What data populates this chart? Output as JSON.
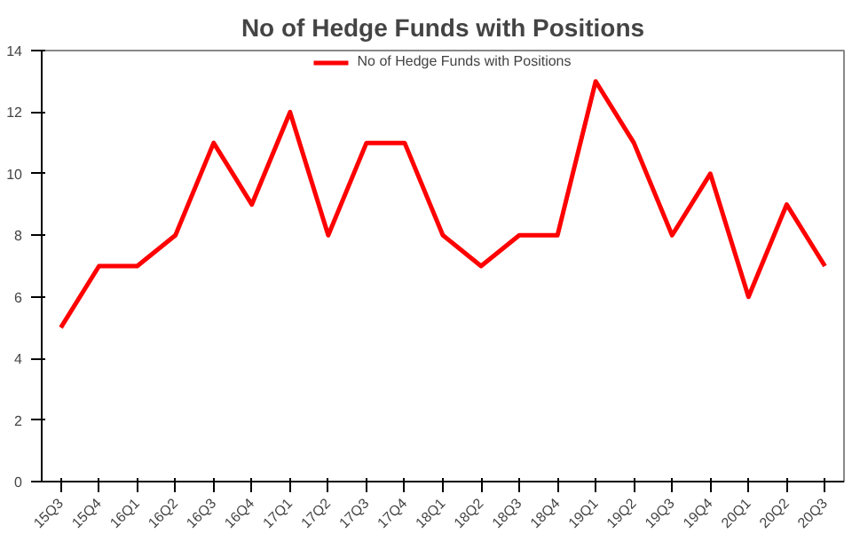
{
  "chart_data": {
    "type": "line",
    "title": "No of Hedge Funds with Positions",
    "categories": [
      "15Q3",
      "15Q4",
      "16Q1",
      "16Q2",
      "16Q3",
      "16Q4",
      "17Q1",
      "17Q2",
      "17Q3",
      "17Q4",
      "18Q1",
      "18Q2",
      "18Q3",
      "18Q4",
      "19Q1",
      "19Q2",
      "19Q3",
      "19Q4",
      "20Q1",
      "20Q2",
      "20Q3"
    ],
    "series": [
      {
        "name": "No of Hedge Funds with Positions",
        "color": "#ff0000",
        "values": [
          5,
          7,
          7,
          8,
          11,
          9,
          12,
          8,
          11,
          11,
          8,
          7,
          8,
          8,
          13,
          11,
          8,
          10,
          6,
          9,
          7
        ]
      }
    ],
    "ylim": [
      0,
      14
    ],
    "yticks": [
      0,
      2,
      4,
      6,
      8,
      10,
      12,
      14
    ],
    "grid": false,
    "legend": "top",
    "marker": "none",
    "line_style": "solid"
  }
}
